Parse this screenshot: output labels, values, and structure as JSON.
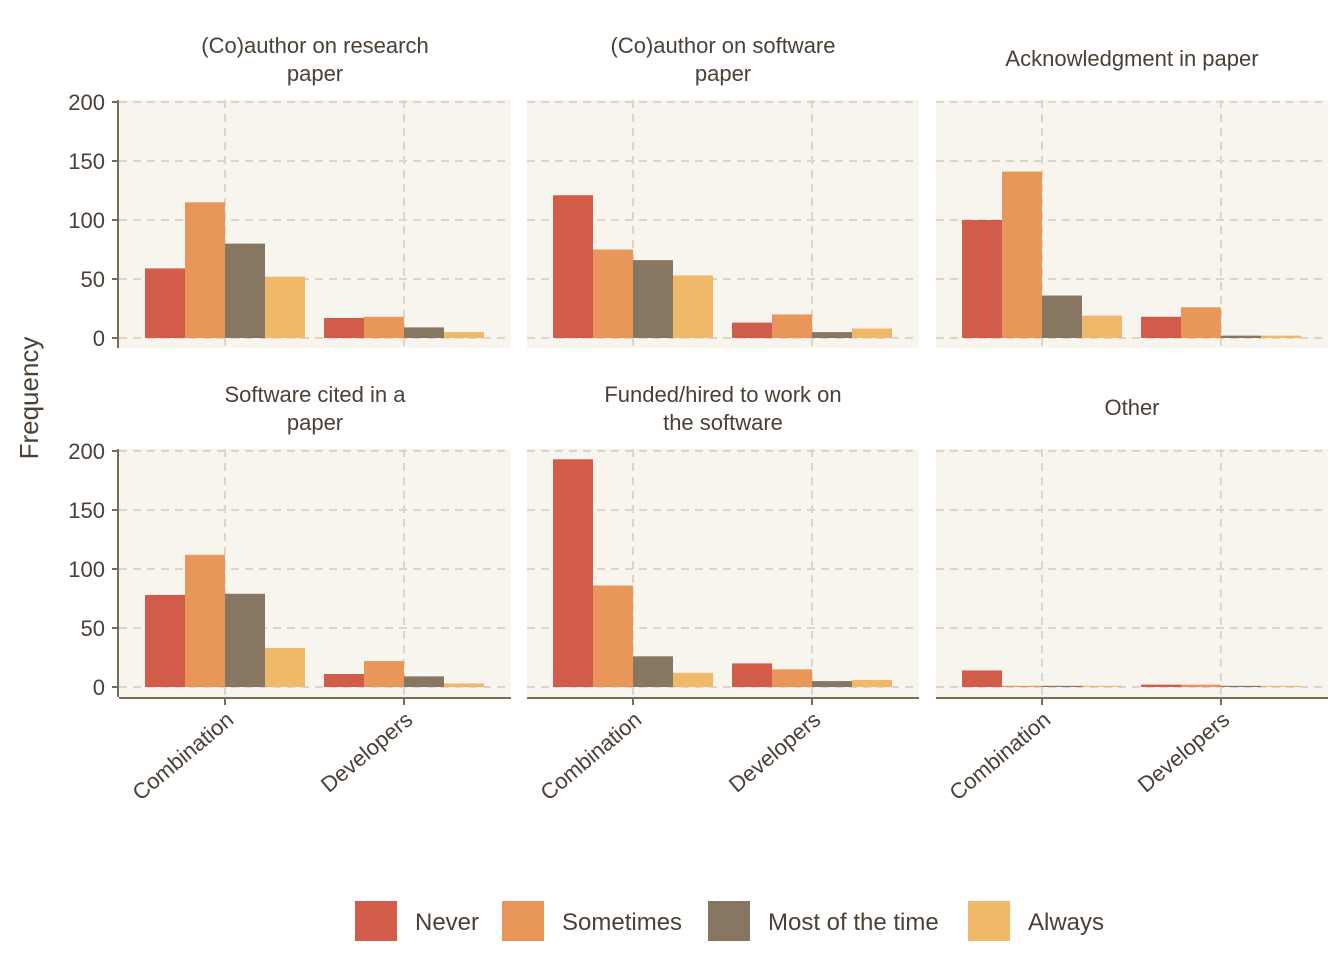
{
  "chart_data": {
    "type": "bar",
    "ylabel": "Frequency",
    "xlabel": "",
    "ylim": [
      0,
      200
    ],
    "yticks": [
      0,
      50,
      100,
      150,
      200
    ],
    "categories": [
      "Combination",
      "Developers"
    ],
    "grid": true,
    "legend_position": "bottom",
    "series": [
      {
        "name": "Never",
        "color": "#d15c4a"
      },
      {
        "name": "Sometimes",
        "color": "#e8965a"
      },
      {
        "name": "Most of the time",
        "color": "#877762"
      },
      {
        "name": "Always",
        "color": "#f0b96a"
      }
    ],
    "panels": [
      {
        "title": "(Co)author on research paper",
        "title_lines": [
          "(Co)author on research",
          "paper"
        ],
        "values": {
          "Combination": [
            59,
            115,
            80,
            52
          ],
          "Developers": [
            17,
            18,
            9,
            5
          ]
        }
      },
      {
        "title": "(Co)author on software paper",
        "title_lines": [
          "(Co)author on software",
          "paper"
        ],
        "values": {
          "Combination": [
            121,
            75,
            66,
            53
          ],
          "Developers": [
            13,
            20,
            5,
            8
          ]
        }
      },
      {
        "title": "Acknowledgment in paper",
        "title_lines": [
          "Acknowledgment in paper"
        ],
        "values": {
          "Combination": [
            100,
            141,
            36,
            19
          ],
          "Developers": [
            18,
            26,
            2,
            2
          ]
        }
      },
      {
        "title": "Software cited in a paper",
        "title_lines": [
          "Software cited in a",
          "paper"
        ],
        "values": {
          "Combination": [
            78,
            112,
            79,
            33
          ],
          "Developers": [
            11,
            22,
            9,
            3
          ]
        }
      },
      {
        "title": "Funded/hired to work on the software",
        "title_lines": [
          "Funded/hired to work on",
          "the software"
        ],
        "values": {
          "Combination": [
            193,
            86,
            26,
            12
          ],
          "Developers": [
            20,
            15,
            5,
            6
          ]
        }
      },
      {
        "title": "Other",
        "title_lines": [
          "Other"
        ],
        "values": {
          "Combination": [
            14,
            1,
            1,
            1
          ],
          "Developers": [
            2,
            2,
            1,
            1
          ]
        }
      }
    ]
  }
}
